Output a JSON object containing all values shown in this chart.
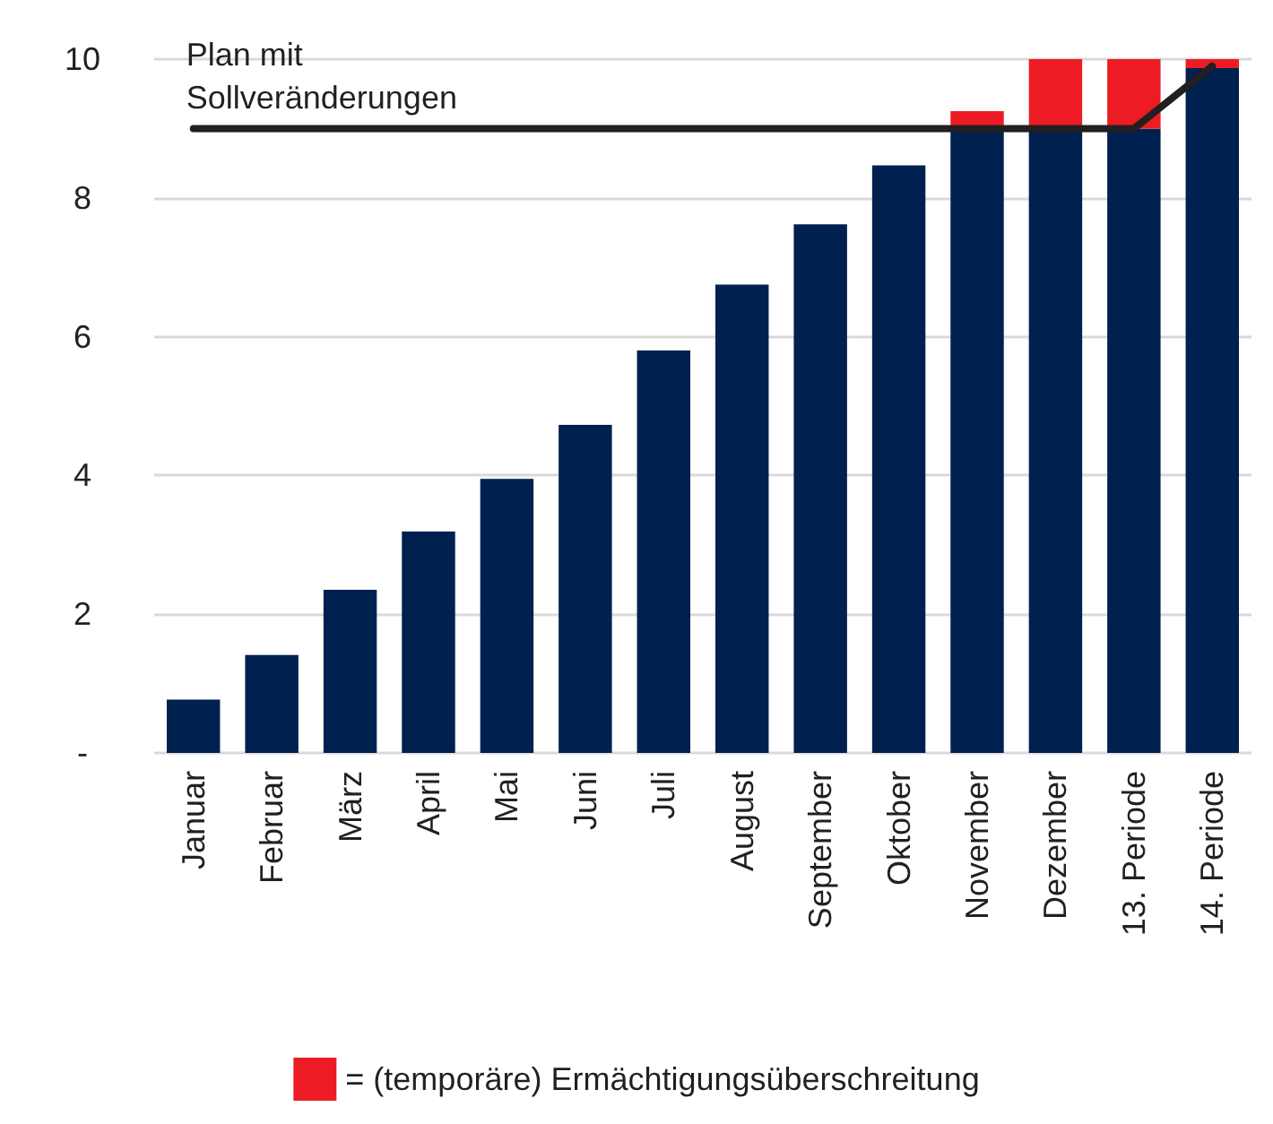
{
  "chart_data": {
    "type": "bar",
    "stacked": true,
    "categories": [
      "Januar",
      "Februar",
      "März",
      "April",
      "Mai",
      "Juni",
      "Juli",
      "August",
      "September",
      "Oktober",
      "November",
      "Dezember",
      "13. Periode",
      "14. Periode"
    ],
    "series": [
      {
        "color": "#002050",
        "values": [
          0.77,
          1.41,
          2.35,
          3.19,
          3.95,
          4.73,
          5.8,
          6.75,
          7.62,
          8.47,
          9,
          9,
          9,
          9.87
        ]
      },
      {
        "name": "= (temporäre) Ermächtigungsüberschreitung",
        "color": "#ed1c24",
        "values": [
          null,
          null,
          null,
          null,
          null,
          null,
          null,
          null,
          null,
          null,
          0.25,
          1,
          1,
          0.13
        ]
      },
      {
        "type": "line",
        "name": "Plan mit\nSollveränderungen",
        "color": "#231f20",
        "values": [
          9,
          9,
          9,
          9,
          9,
          9,
          9,
          9,
          9,
          9,
          9,
          9,
          9,
          9.9
        ]
      }
    ],
    "ylim": [
      0,
      10
    ],
    "yticks": [
      {
        "value": 0,
        "label": "-"
      },
      2,
      4,
      6,
      8,
      10
    ],
    "grid": "y",
    "legend": "bottom",
    "marker": "none",
    "line_style": "solid"
  }
}
